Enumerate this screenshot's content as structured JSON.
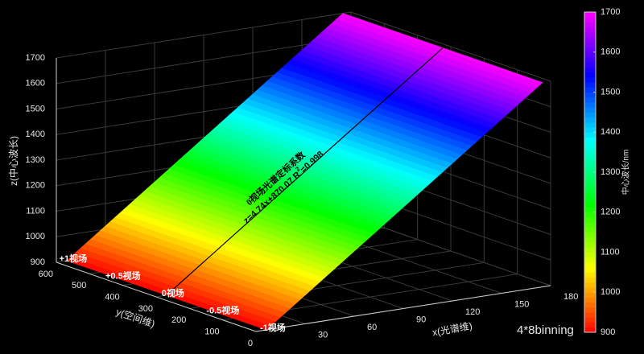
{
  "chart_data": {
    "type": "surface",
    "xlabel": "x(光谱维)",
    "ylabel": "y(空间维)",
    "zlabel": "z(中心波长)",
    "xlim": [
      0,
      180
    ],
    "xticks": [
      30,
      60,
      90,
      120,
      150,
      180
    ],
    "ylim": [
      0,
      600
    ],
    "yticks": [
      0,
      100,
      200,
      300,
      400,
      500,
      600
    ],
    "zlim": [
      900,
      1700
    ],
    "zticks": [
      900,
      1000,
      1100,
      1200,
      1300,
      1400,
      1500,
      1600,
      1700
    ],
    "grid": true,
    "colormap": "hsv",
    "fit": {
      "slope": 4.74,
      "intercept": 870.07
    },
    "center_line_y": 300,
    "annotation_title": "0视场光谱定标系数",
    "annotation_equation": "z=4.74x+870.07 R",
    "annotation_sup": "2",
    "annotation_r2": "=0.998",
    "field_labels": [
      {
        "label": "+1视场",
        "y": 600
      },
      {
        "label": "+0.5视场",
        "y": 450
      },
      {
        "label": "0视场",
        "y": 300
      },
      {
        "label": "-0.5视场",
        "y": 150
      },
      {
        "label": "-1视场",
        "y": 0
      }
    ],
    "colorbar": {
      "label": "中心波长/nm",
      "clim": [
        900,
        1700
      ],
      "ticks": [
        900,
        1000,
        1100,
        1200,
        1300,
        1400,
        1500,
        1600,
        1700
      ]
    },
    "note": "4*8binning"
  }
}
